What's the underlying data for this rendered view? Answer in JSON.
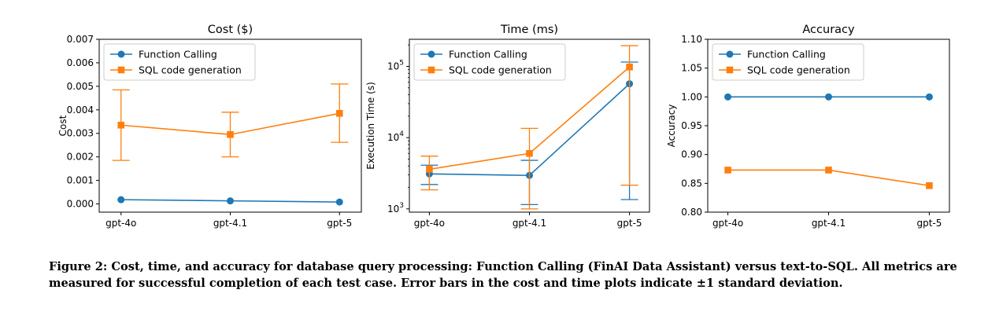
{
  "chart_data": [
    {
      "type": "line",
      "title": "Cost ($)",
      "xlabel": "",
      "ylabel": "Cost",
      "categories": [
        "gpt-4o",
        "gpt-4.1",
        "gpt-5"
      ],
      "ylim": [
        -0.00035,
        0.007
      ],
      "yscale": "linear",
      "yticks": [
        0.0,
        0.001,
        0.002,
        0.003,
        0.004,
        0.005,
        0.006,
        0.007
      ],
      "ytick_labels": [
        "0.000",
        "0.001",
        "0.002",
        "0.003",
        "0.004",
        "0.005",
        "0.006",
        "0.007"
      ],
      "grid": false,
      "legend": "top-left",
      "series": [
        {
          "name": "Function Calling",
          "color": "#1f77b4",
          "marker": "circle",
          "values": [
            0.00018,
            0.00013,
            8e-05
          ],
          "err_low": null,
          "err_high": null
        },
        {
          "name": "SQL code generation",
          "color": "#ff7f0e",
          "marker": "square",
          "values": [
            0.00335,
            0.00295,
            0.00385
          ],
          "err_low": [
            0.00185,
            0.002,
            0.00262
          ],
          "err_high": [
            0.00485,
            0.0039,
            0.0051
          ]
        }
      ]
    },
    {
      "type": "line",
      "title": "Time (ms)",
      "xlabel": "",
      "ylabel": "Execution Time (s)",
      "categories": [
        "gpt-4o",
        "gpt-4.1",
        "gpt-5"
      ],
      "ylim": [
        900,
        240000
      ],
      "yscale": "log",
      "yticks": [
        1000,
        10000,
        100000
      ],
      "ytick_labels": [
        "10^3",
        "10^4",
        "10^5"
      ],
      "grid": false,
      "legend": "top-left",
      "series": [
        {
          "name": "Function Calling",
          "color": "#1f77b4",
          "marker": "circle",
          "values": [
            3100,
            2950,
            57000
          ],
          "err_low": [
            2200,
            1150,
            1350
          ],
          "err_high": [
            4100,
            4800,
            115000
          ]
        },
        {
          "name": "SQL code generation",
          "color": "#ff7f0e",
          "marker": "square",
          "values": [
            3600,
            6000,
            98000
          ],
          "err_low": [
            1850,
            1000,
            2150
          ],
          "err_high": [
            5500,
            13500,
            195000
          ]
        }
      ]
    },
    {
      "type": "line",
      "title": "Accuracy",
      "xlabel": "",
      "ylabel": "Accuracy",
      "categories": [
        "gpt-4o",
        "gpt-4.1",
        "gpt-5"
      ],
      "ylim": [
        0.8,
        1.1
      ],
      "yscale": "linear",
      "yticks": [
        0.8,
        0.85,
        0.9,
        0.95,
        1.0,
        1.05,
        1.1
      ],
      "ytick_labels": [
        "0.80",
        "0.85",
        "0.90",
        "0.95",
        "1.00",
        "1.05",
        "1.10"
      ],
      "grid": false,
      "legend": "top-left",
      "series": [
        {
          "name": "Function Calling",
          "color": "#1f77b4",
          "marker": "circle",
          "values": [
            1.0,
            1.0,
            1.0
          ],
          "err_low": null,
          "err_high": null
        },
        {
          "name": "SQL code generation",
          "color": "#ff7f0e",
          "marker": "square",
          "values": [
            0.873,
            0.873,
            0.846
          ],
          "err_low": null,
          "err_high": null
        }
      ]
    }
  ],
  "caption": "Figure 2: Cost, time, and accuracy for database query processing: Function Calling (FinAI Data Assistant) versus text-to-SQL. All metrics are measured for successful completion of each test case. Error bars in the cost and time plots indicate ±1 standard deviation."
}
